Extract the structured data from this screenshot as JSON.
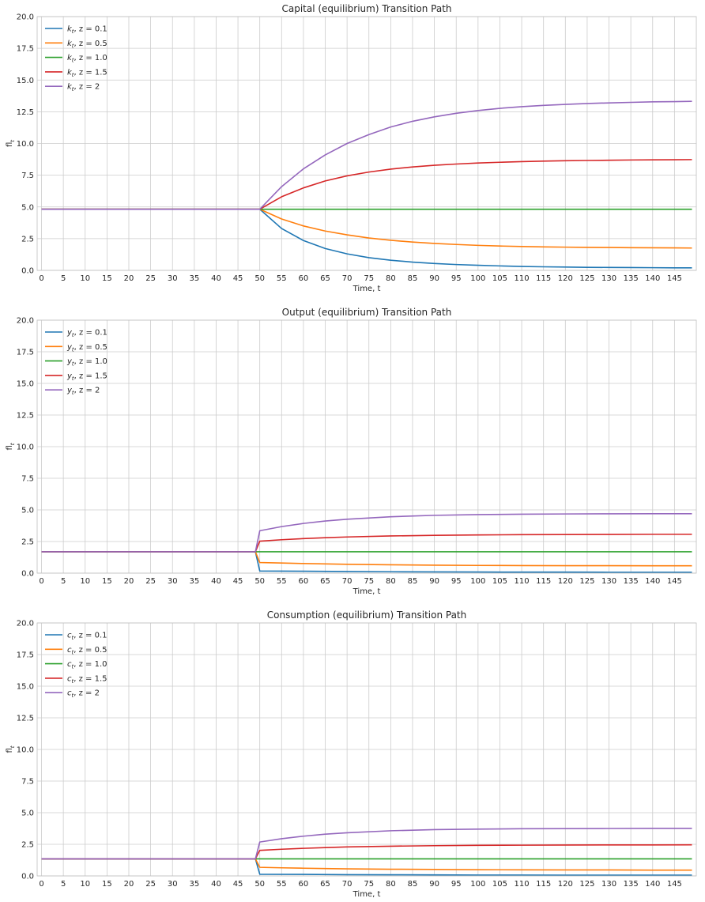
{
  "figure": {
    "background": "#ffffff",
    "grid_color": "#cccccc",
    "axes_edge_color": "#bfbfbf"
  },
  "chart_data": [
    {
      "type": "line",
      "title": "Capital (equilibrium) Transition Path",
      "xlabel": "Time, t",
      "ylabel": "fl",
      "ylabel_sub": "t",
      "xlim": [
        -1,
        150
      ],
      "ylim": [
        0,
        20
      ],
      "xticks": [
        0,
        5,
        10,
        15,
        20,
        25,
        30,
        35,
        40,
        45,
        50,
        55,
        60,
        65,
        70,
        75,
        80,
        85,
        90,
        95,
        100,
        105,
        110,
        115,
        120,
        125,
        130,
        135,
        140,
        145
      ],
      "yticks": [
        0,
        2.5,
        5.0,
        7.5,
        10.0,
        12.5,
        15.0,
        17.5,
        20.0
      ],
      "ytick_labels": [
        "0.0",
        "2.5",
        "5.0",
        "7.5",
        "10.0",
        "12.5",
        "15.0",
        "17.5",
        "20.0"
      ],
      "grid": true,
      "legend_position": "upper-left",
      "series": [
        {
          "name": "k",
          "sub": "t",
          "suffix": ", z = 0.1",
          "color": "#1f77b4",
          "x": [
            0,
            49,
            50,
            55,
            60,
            65,
            70,
            75,
            80,
            85,
            90,
            95,
            100,
            105,
            110,
            115,
            120,
            125,
            130,
            135,
            140,
            145,
            149
          ],
          "y": [
            4.82,
            4.82,
            4.82,
            3.3,
            2.35,
            1.72,
            1.3,
            1.0,
            0.8,
            0.65,
            0.54,
            0.46,
            0.4,
            0.35,
            0.31,
            0.28,
            0.26,
            0.24,
            0.23,
            0.22,
            0.21,
            0.2,
            0.2
          ]
        },
        {
          "name": "k",
          "sub": "t",
          "suffix": ", z = 0.5",
          "color": "#ff7f0e",
          "x": [
            0,
            49,
            50,
            55,
            60,
            65,
            70,
            75,
            80,
            85,
            90,
            95,
            100,
            105,
            110,
            115,
            120,
            125,
            130,
            135,
            140,
            145,
            149
          ],
          "y": [
            4.82,
            4.82,
            4.82,
            4.05,
            3.5,
            3.1,
            2.8,
            2.55,
            2.37,
            2.23,
            2.12,
            2.04,
            1.97,
            1.92,
            1.88,
            1.85,
            1.83,
            1.81,
            1.8,
            1.79,
            1.78,
            1.77,
            1.76
          ]
        },
        {
          "name": "k",
          "sub": "t",
          "suffix": ", z = 1.0",
          "color": "#2ca02c",
          "x": [
            0,
            149
          ],
          "y": [
            4.82,
            4.82
          ]
        },
        {
          "name": "k",
          "sub": "t",
          "suffix": ", z = 1.5",
          "color": "#d62728",
          "x": [
            0,
            49,
            50,
            55,
            60,
            65,
            70,
            75,
            80,
            85,
            90,
            95,
            100,
            105,
            110,
            115,
            120,
            125,
            130,
            135,
            140,
            145,
            149
          ],
          "y": [
            4.82,
            4.82,
            4.82,
            5.8,
            6.5,
            7.05,
            7.45,
            7.75,
            7.98,
            8.15,
            8.28,
            8.38,
            8.46,
            8.52,
            8.57,
            8.61,
            8.64,
            8.66,
            8.68,
            8.7,
            8.71,
            8.72,
            8.73
          ]
        },
        {
          "name": "k",
          "sub": "t",
          "suffix": ", z = 2",
          "color": "#9467bd",
          "x": [
            0,
            49,
            50,
            55,
            60,
            65,
            70,
            75,
            80,
            85,
            90,
            95,
            100,
            105,
            110,
            115,
            120,
            125,
            130,
            135,
            140,
            145,
            149
          ],
          "y": [
            4.82,
            4.82,
            4.82,
            6.6,
            8.0,
            9.1,
            10.0,
            10.7,
            11.3,
            11.75,
            12.1,
            12.38,
            12.6,
            12.77,
            12.9,
            13.0,
            13.08,
            13.15,
            13.2,
            13.24,
            13.28,
            13.3,
            13.32
          ]
        }
      ]
    },
    {
      "type": "line",
      "title": "Output (equilibrium) Transition Path",
      "xlabel": "Time, t",
      "ylabel": "fl",
      "ylabel_sub": "t",
      "xlim": [
        -1,
        150
      ],
      "ylim": [
        0,
        20
      ],
      "xticks": [
        0,
        5,
        10,
        15,
        20,
        25,
        30,
        35,
        40,
        45,
        50,
        55,
        60,
        65,
        70,
        75,
        80,
        85,
        90,
        95,
        100,
        105,
        110,
        115,
        120,
        125,
        130,
        135,
        140,
        145
      ],
      "yticks": [
        0,
        2.5,
        5.0,
        7.5,
        10.0,
        12.5,
        15.0,
        17.5,
        20.0
      ],
      "ytick_labels": [
        "0.0",
        "2.5",
        "5.0",
        "7.5",
        "10.0",
        "12.5",
        "15.0",
        "17.5",
        "20.0"
      ],
      "grid": true,
      "legend_position": "upper-left",
      "series": [
        {
          "name": "y",
          "sub": "t",
          "suffix": ", z = 0.1",
          "color": "#1f77b4",
          "x": [
            0,
            49,
            50,
            60,
            70,
            80,
            90,
            100,
            110,
            120,
            130,
            140,
            149
          ],
          "y": [
            1.69,
            1.69,
            0.17,
            0.15,
            0.13,
            0.11,
            0.1,
            0.09,
            0.08,
            0.08,
            0.07,
            0.07,
            0.07
          ]
        },
        {
          "name": "y",
          "sub": "t",
          "suffix": ", z = 0.5",
          "color": "#ff7f0e",
          "x": [
            0,
            49,
            50,
            55,
            60,
            65,
            70,
            80,
            90,
            100,
            110,
            120,
            130,
            140,
            149
          ],
          "y": [
            1.69,
            1.69,
            0.84,
            0.8,
            0.76,
            0.73,
            0.7,
            0.66,
            0.63,
            0.61,
            0.6,
            0.59,
            0.59,
            0.58,
            0.58
          ]
        },
        {
          "name": "y",
          "sub": "t",
          "suffix": ", z = 1.0",
          "color": "#2ca02c",
          "x": [
            0,
            149
          ],
          "y": [
            1.69,
            1.69
          ]
        },
        {
          "name": "y",
          "sub": "t",
          "suffix": ", z = 1.5",
          "color": "#d62728",
          "x": [
            0,
            49,
            50,
            55,
            60,
            65,
            70,
            80,
            90,
            100,
            110,
            120,
            130,
            140,
            149
          ],
          "y": [
            1.69,
            1.69,
            2.53,
            2.64,
            2.73,
            2.8,
            2.86,
            2.94,
            2.99,
            3.02,
            3.04,
            3.05,
            3.06,
            3.07,
            3.07
          ]
        },
        {
          "name": "y",
          "sub": "t",
          "suffix": ", z = 2",
          "color": "#9467bd",
          "x": [
            0,
            49,
            50,
            55,
            60,
            65,
            70,
            80,
            90,
            100,
            110,
            120,
            130,
            140,
            149
          ],
          "y": [
            1.69,
            1.69,
            3.35,
            3.68,
            3.93,
            4.12,
            4.26,
            4.46,
            4.57,
            4.63,
            4.66,
            4.68,
            4.69,
            4.7,
            4.7
          ]
        }
      ]
    },
    {
      "type": "line",
      "title": "Consumption (equilibrium) Transition Path",
      "xlabel": "Time, t",
      "ylabel": "fl",
      "ylabel_sub": "t",
      "xlim": [
        -1,
        150
      ],
      "ylim": [
        0,
        20
      ],
      "xticks": [
        0,
        5,
        10,
        15,
        20,
        25,
        30,
        35,
        40,
        45,
        50,
        55,
        60,
        65,
        70,
        75,
        80,
        85,
        90,
        95,
        100,
        105,
        110,
        115,
        120,
        125,
        130,
        135,
        140,
        145
      ],
      "yticks": [
        0,
        2.5,
        5.0,
        7.5,
        10.0,
        12.5,
        15.0,
        17.5,
        20.0
      ],
      "ytick_labels": [
        "0.0",
        "2.5",
        "5.0",
        "7.5",
        "10.0",
        "12.5",
        "15.0",
        "17.5",
        "20.0"
      ],
      "grid": true,
      "legend_position": "upper-left",
      "series": [
        {
          "name": "c",
          "sub": "t",
          "suffix": ", z = 0.1",
          "color": "#1f77b4",
          "x": [
            0,
            49,
            50,
            60,
            70,
            80,
            90,
            100,
            110,
            120,
            130,
            140,
            149
          ],
          "y": [
            1.35,
            1.35,
            0.13,
            0.12,
            0.1,
            0.09,
            0.08,
            0.07,
            0.07,
            0.06,
            0.06,
            0.06,
            0.06
          ]
        },
        {
          "name": "c",
          "sub": "t",
          "suffix": ", z = 0.5",
          "color": "#ff7f0e",
          "x": [
            0,
            49,
            50,
            55,
            60,
            65,
            70,
            80,
            90,
            100,
            110,
            120,
            130,
            140,
            149
          ],
          "y": [
            1.35,
            1.35,
            0.68,
            0.64,
            0.61,
            0.58,
            0.56,
            0.53,
            0.51,
            0.49,
            0.48,
            0.47,
            0.47,
            0.46,
            0.46
          ]
        },
        {
          "name": "c",
          "sub": "t",
          "suffix": ", z = 1.0",
          "color": "#2ca02c",
          "x": [
            0,
            149
          ],
          "y": [
            1.35,
            1.35
          ]
        },
        {
          "name": "c",
          "sub": "t",
          "suffix": ", z = 1.5",
          "color": "#d62728",
          "x": [
            0,
            49,
            50,
            55,
            60,
            65,
            70,
            80,
            90,
            100,
            110,
            120,
            130,
            140,
            149
          ],
          "y": [
            1.35,
            1.35,
            2.02,
            2.11,
            2.18,
            2.24,
            2.29,
            2.35,
            2.39,
            2.42,
            2.43,
            2.44,
            2.45,
            2.45,
            2.46
          ]
        },
        {
          "name": "c",
          "sub": "t",
          "suffix": ", z = 2",
          "color": "#9467bd",
          "x": [
            0,
            49,
            50,
            55,
            60,
            65,
            70,
            80,
            90,
            100,
            110,
            120,
            130,
            140,
            149
          ],
          "y": [
            1.35,
            1.35,
            2.68,
            2.94,
            3.14,
            3.3,
            3.41,
            3.57,
            3.66,
            3.7,
            3.73,
            3.74,
            3.75,
            3.76,
            3.76
          ]
        }
      ]
    }
  ]
}
